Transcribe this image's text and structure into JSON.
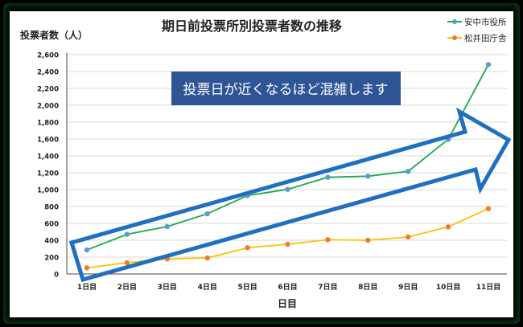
{
  "chart_data": {
    "type": "line",
    "title": "期日前投票所別投票者数の推移",
    "ylabel": "投票者数（人）",
    "xlabel": "日目",
    "categories": [
      "1日目",
      "2日目",
      "3日目",
      "4日目",
      "5日目",
      "6日目",
      "7日目",
      "8日目",
      "9日目",
      "10日目",
      "11日目"
    ],
    "ylim": [
      0,
      2600
    ],
    "yticks": [
      0,
      200,
      400,
      600,
      800,
      1000,
      1200,
      1400,
      1600,
      1800,
      2000,
      2200,
      2400,
      2600
    ],
    "ytick_labels": [
      "0",
      "200",
      "400",
      "600",
      "800",
      "1,000",
      "1,200",
      "1,400",
      "1,600",
      "1,800",
      "2,000",
      "2,200",
      "2,400",
      "2,600"
    ],
    "grid": true,
    "legend_placement": "top-right",
    "series": [
      {
        "name": "安中市役所",
        "line_color": "#1aaa4a",
        "marker_color": "#5b9bd5",
        "values": [
          285,
          470,
          562,
          714,
          930,
          1003,
          1146,
          1159,
          1216,
          1597,
          2483
        ]
      },
      {
        "name": "松井田庁舎",
        "line_color": "#ffc000",
        "marker_color": "#ed7d31",
        "values": [
          73,
          133,
          178,
          190,
          311,
          352,
          406,
          400,
          438,
          559,
          774
        ]
      }
    ],
    "annotation": {
      "text": "投票日が近くなるほど混雑します",
      "color": "#2f5597"
    },
    "arrow_color": "#1f70c1"
  }
}
